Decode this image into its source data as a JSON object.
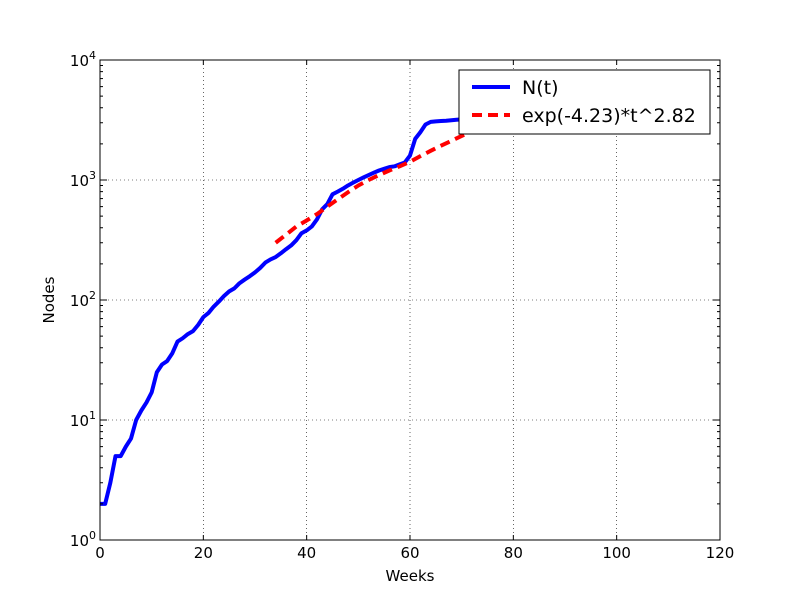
{
  "chart_data": {
    "type": "line",
    "title": "",
    "xlabel": "Weeks",
    "ylabel": "Nodes",
    "xlim": [
      0,
      120
    ],
    "ylim": [
      1,
      10000
    ],
    "yscale": "log",
    "grid": true,
    "legend_position": "top-right",
    "x_ticks": [
      0,
      20,
      40,
      60,
      80,
      100,
      120
    ],
    "x_tick_labels": [
      "0",
      "20",
      "40",
      "60",
      "80",
      "100",
      "120"
    ],
    "y_ticks": [
      1,
      10,
      100,
      1000,
      10000
    ],
    "y_tick_labels": [
      {
        "base": "10",
        "exp": "0"
      },
      {
        "base": "10",
        "exp": "1"
      },
      {
        "base": "10",
        "exp": "2"
      },
      {
        "base": "10",
        "exp": "3"
      },
      {
        "base": "10",
        "exp": "4"
      }
    ],
    "series": [
      {
        "name": "N(t)",
        "color": "#0000ff",
        "style": "solid",
        "x": [
          0,
          1,
          2,
          3,
          4,
          5,
          6,
          7,
          8,
          9,
          10,
          11,
          12,
          13,
          14,
          15,
          16,
          17,
          18,
          19,
          20,
          21,
          22,
          23,
          24,
          25,
          26,
          27,
          28,
          29,
          30,
          31,
          32,
          33,
          34,
          35,
          36,
          37,
          38,
          39,
          40,
          41,
          42,
          43,
          44,
          45,
          46,
          47,
          48,
          49,
          50,
          51,
          52,
          53,
          54,
          55,
          56,
          57,
          58,
          59,
          60,
          61,
          62,
          63,
          64,
          65,
          66,
          67,
          68,
          69,
          70,
          71,
          72,
          73,
          74,
          75
        ],
        "y": [
          2,
          2,
          3,
          5,
          5,
          6,
          7,
          10,
          12,
          14,
          17,
          25,
          29,
          31,
          36,
          45,
          48,
          52,
          55,
          62,
          72,
          78,
          88,
          97,
          108,
          118,
          125,
          138,
          148,
          158,
          170,
          185,
          205,
          218,
          228,
          245,
          265,
          285,
          315,
          360,
          380,
          410,
          470,
          570,
          630,
          760,
          800,
          845,
          900,
          950,
          1000,
          1050,
          1100,
          1150,
          1200,
          1240,
          1280,
          1300,
          1350,
          1400,
          1600,
          2200,
          2500,
          2900,
          3050,
          3080,
          3100,
          3120,
          3150,
          3180,
          3200,
          3250,
          3300,
          3350,
          3400,
          3450
        ]
      },
      {
        "name": "exp(-4.23)*t^2.82",
        "color": "#ff0000",
        "style": "dashed",
        "x": [
          34,
          36,
          38,
          40,
          42,
          44,
          46,
          48,
          50,
          52,
          54,
          56,
          58,
          60,
          62,
          64,
          66,
          68,
          70,
          72,
          74
        ],
        "y": [
          300,
          350,
          410,
          460,
          520,
          600,
          690,
          790,
          900,
          1000,
          1100,
          1200,
          1300,
          1420,
          1580,
          1750,
          1930,
          2120,
          2330,
          2550,
          2780
        ]
      }
    ]
  }
}
